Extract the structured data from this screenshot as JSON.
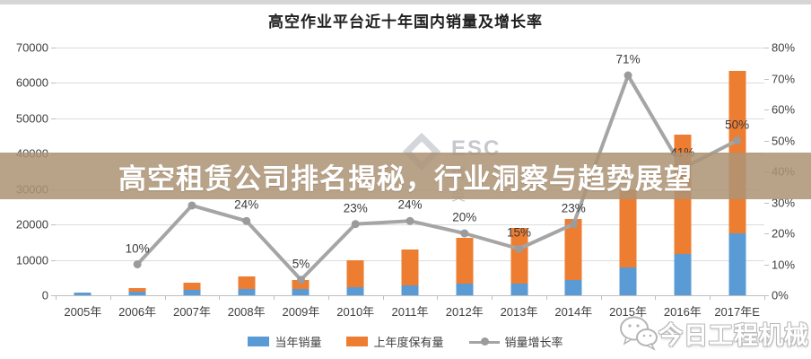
{
  "title": "高空作业平台近十年国内销量及增长率",
  "banner": {
    "text": "高空租赁公司排名揭秘，行业洞察与趋势展望",
    "background": "#ac9476"
  },
  "watermark_center": {
    "icon": "diamond-logo",
    "text_primary": "ESC",
    "text_secondary": "精英"
  },
  "watermark_bottom_right": {
    "icon": "wechat-icon",
    "text": "今日工程机械"
  },
  "chart_data": {
    "type": "bar",
    "subtype": "stacked-bars-with-line-combo",
    "title": "高空作业平台近十年国内销量及增长率",
    "categories": [
      "2005年",
      "2006年",
      "2007年",
      "2008年",
      "2009年",
      "2010年",
      "2011年",
      "2012年",
      "2013年",
      "2014年",
      "2015年",
      "2016年",
      "2017年E"
    ],
    "series": [
      {
        "name": "当年销量",
        "type": "bar",
        "color": "#5b9bd5",
        "values": [
          800,
          1000,
          1450,
          1700,
          1900,
          2300,
          2900,
          3300,
          3400,
          4200,
          7900,
          11600,
          17500
        ]
      },
      {
        "name": "上年度保有量",
        "type": "bar",
        "color": "#ed7d31",
        "values": [
          0,
          1100,
          2000,
          3700,
          2300,
          7500,
          10000,
          12900,
          15700,
          17400,
          22100,
          33900,
          45900
        ]
      },
      {
        "name": "销量增长率",
        "type": "line",
        "color": "#a5a5a5",
        "marker_color": "#9b9b9b",
        "axis": "right",
        "values_pct": [
          null,
          10,
          29,
          24,
          5,
          23,
          24,
          20,
          15,
          23,
          71,
          41,
          50
        ],
        "point_labels": [
          "",
          "10%",
          "",
          "24%",
          "5%",
          "23%",
          "24%",
          "20%",
          "15%",
          "23%",
          "71%",
          "41%",
          "50%"
        ]
      }
    ],
    "left_axis": {
      "label": "",
      "min": 0,
      "max": 70000,
      "ticks": [
        "0",
        "10000",
        "20000",
        "30000",
        "40000",
        "50000",
        "60000",
        "70000"
      ]
    },
    "right_axis": {
      "label": "",
      "min": 0,
      "max": 80,
      "ticks": [
        "0%",
        "10%",
        "20%",
        "30%",
        "40%",
        "50%",
        "60%",
        "70%",
        "80%"
      ]
    },
    "grid": "horizontal",
    "legend_position": "bottom",
    "legend": [
      "当年销量",
      "上年度保有量",
      "销量增长率"
    ]
  }
}
